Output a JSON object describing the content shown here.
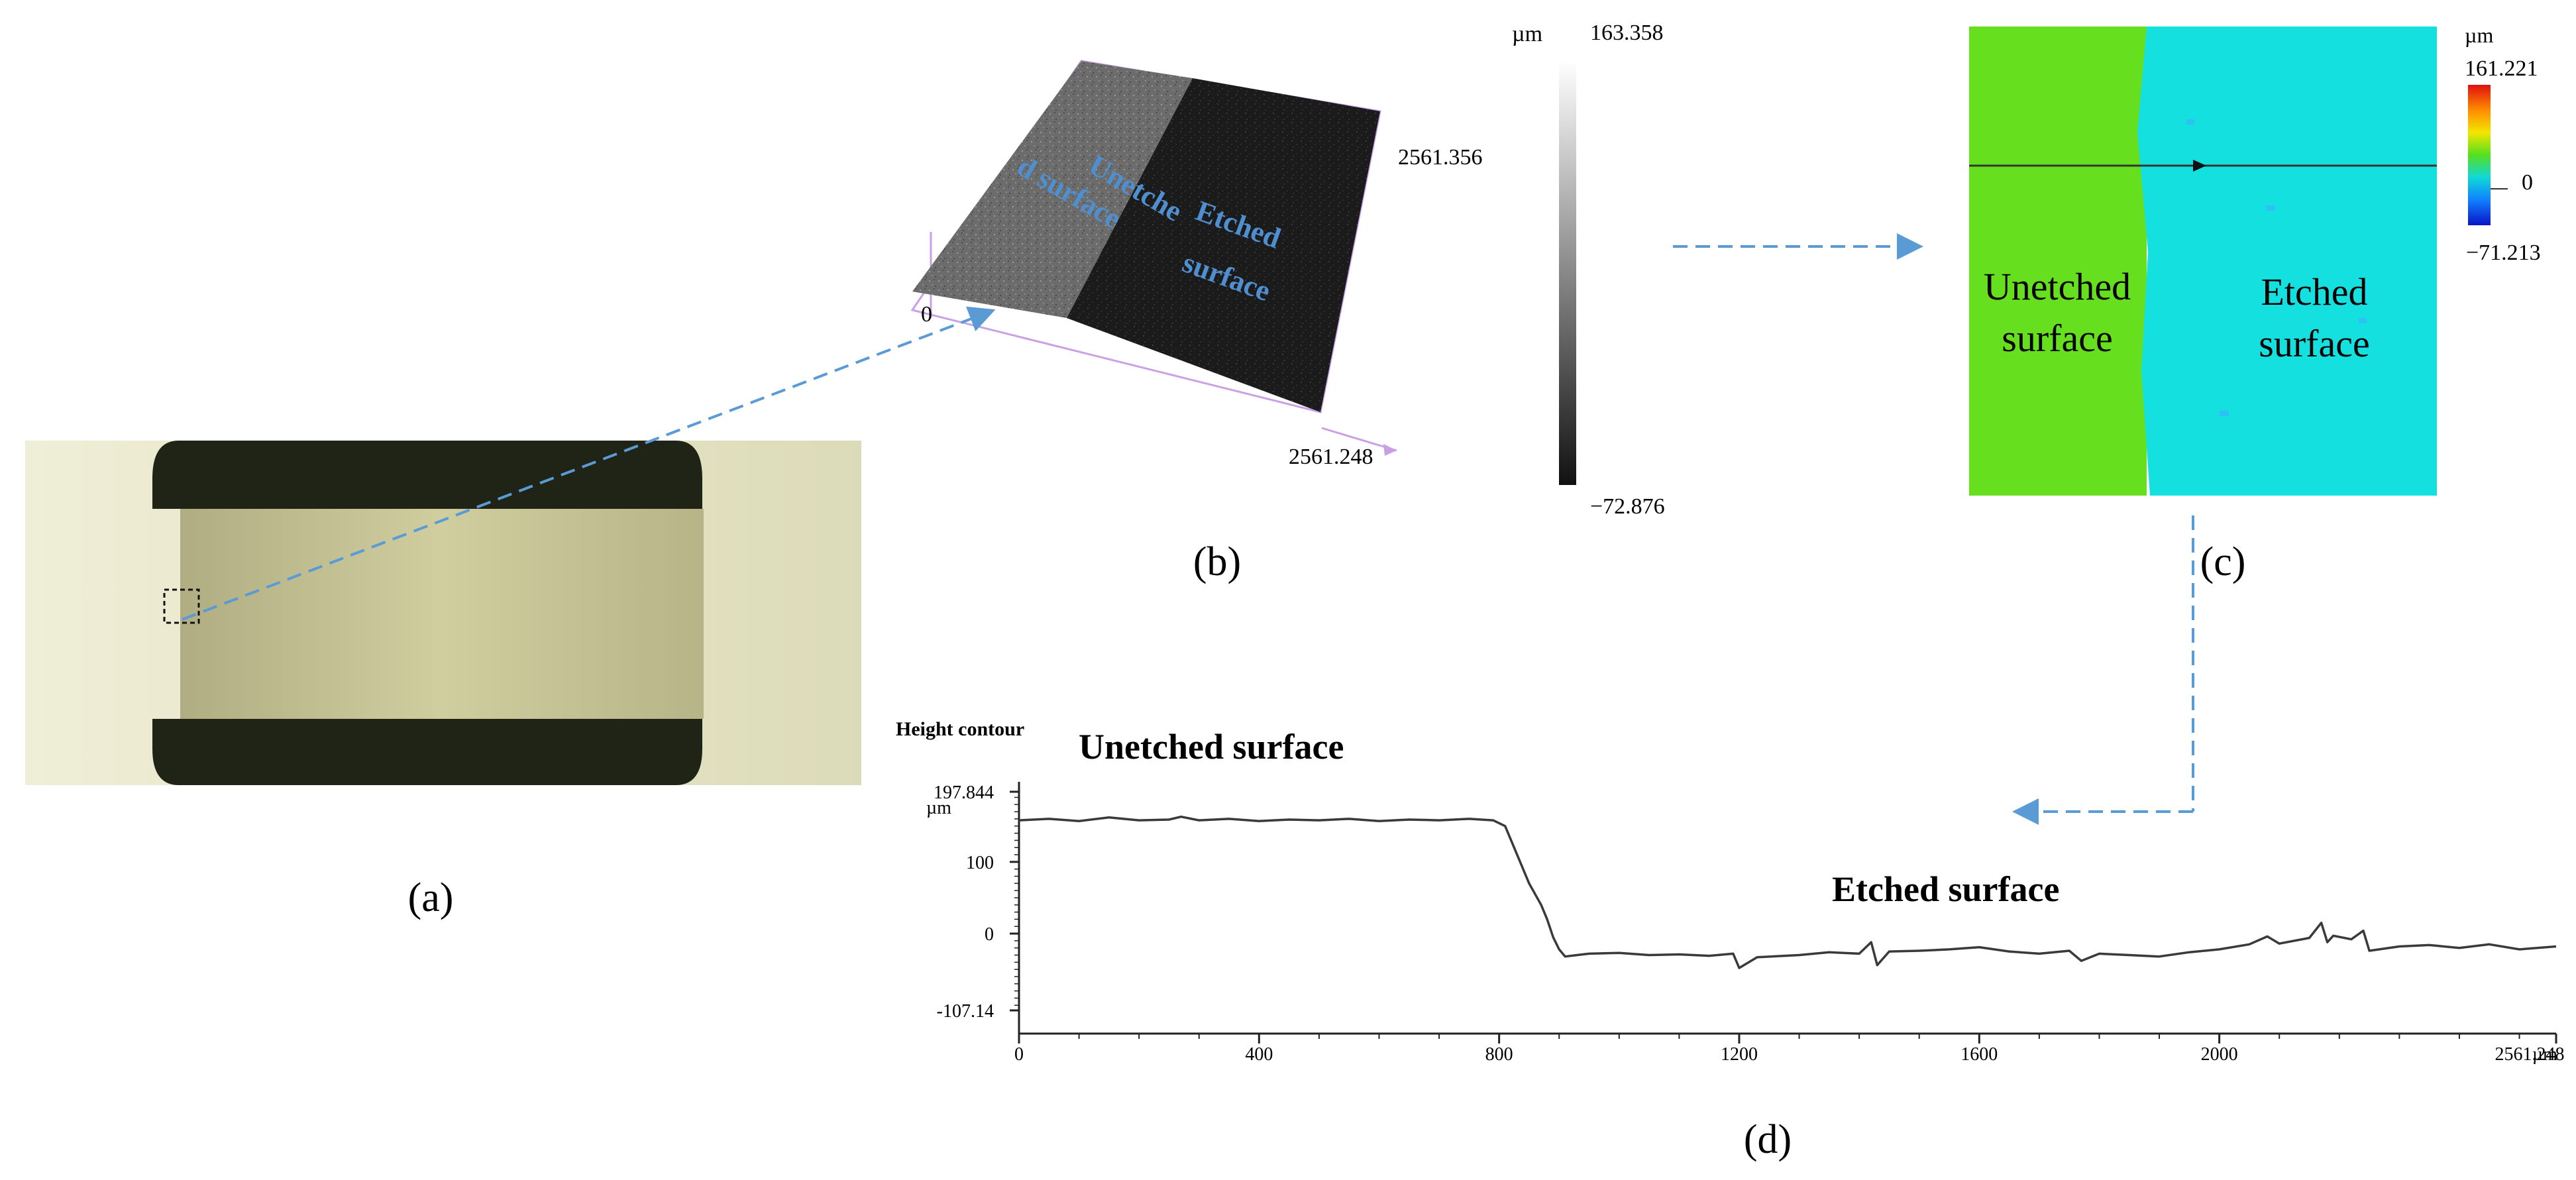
{
  "panels": {
    "a": {
      "label": "(a)"
    },
    "b": {
      "label": "(b)",
      "unetched_line1": "Unetche",
      "unetched_line2": "d surface",
      "etched_line1": "Etched",
      "etched_line2": "surface",
      "axis_zero": "0",
      "axis_y_max": "2561.356",
      "axis_x_max": "2561.248",
      "scale_unit": "µm",
      "scale_max": "163.358",
      "scale_min": "−72.876"
    },
    "c": {
      "label": "(c)",
      "unetched_line1": "Unetched",
      "unetched_line2": "surface",
      "etched_line1": "Etched",
      "etched_line2": "surface",
      "scale_unit": "µm",
      "scale_max": "161.221",
      "scale_zero": "0",
      "scale_min": "−71.213"
    },
    "d": {
      "label": "(d)",
      "title": "Height contour",
      "unetched_label": "Unetched surface",
      "etched_label": "Etched surface",
      "y_unit": "µm",
      "x_unit": "µm"
    }
  },
  "colors": {
    "arrow": "#5a9bd5",
    "label_blue": "#4f8fd0",
    "unetched_green": "#66e01e",
    "etched_cyan": "#14e0e0",
    "profile_line": "#3a3a3a",
    "box_outline": "#c9a0e6"
  },
  "chart_data": {
    "type": "line",
    "title": "Height contour",
    "xlabel": "µm",
    "ylabel": "µm",
    "xlim": [
      0,
      2561.248
    ],
    "ylim": [
      -107.14,
      197.844
    ],
    "x_ticks": [
      "0",
      "400",
      "800",
      "1200",
      "1600",
      "2000",
      "2561.248"
    ],
    "x_tick_values": [
      0,
      400,
      800,
      1200,
      1600,
      2000,
      2561.248
    ],
    "y_ticks": [
      "197.844",
      "100",
      "0",
      "-107.14"
    ],
    "y_tick_values": [
      197.844,
      100,
      0,
      -107.14
    ],
    "series": [
      {
        "x": [
          0,
          50,
          100,
          150,
          200,
          250,
          270,
          300,
          350,
          400,
          450,
          500,
          550,
          600,
          650,
          700,
          750,
          790,
          810,
          830,
          850,
          870,
          880,
          890,
          900,
          910,
          930,
          950,
          1000,
          1050,
          1100,
          1150,
          1190,
          1200,
          1230,
          1300,
          1350,
          1400,
          1420,
          1430,
          1450,
          1500,
          1550,
          1600,
          1650,
          1700,
          1750,
          1770,
          1800,
          1850,
          1900,
          1950,
          2000,
          2050,
          2080,
          2100,
          2150,
          2170,
          2180,
          2190,
          2220,
          2240,
          2250,
          2300,
          2350,
          2400,
          2450,
          2500,
          2561.248
        ],
        "values": [
          158,
          160,
          157,
          162,
          158,
          159,
          163,
          158,
          160,
          157,
          159,
          158,
          160,
          157,
          159,
          158,
          160,
          158,
          150,
          110,
          70,
          40,
          20,
          -5,
          -22,
          -32,
          -30,
          -28,
          -27,
          -30,
          -29,
          -31,
          -28,
          -48,
          -33,
          -30,
          -26,
          -28,
          -12,
          -44,
          -25,
          -24,
          -22,
          -19,
          -25,
          -28,
          -24,
          -38,
          -28,
          -30,
          -32,
          -26,
          -22,
          -15,
          -4,
          -14,
          -6,
          15,
          -12,
          -3,
          -8,
          4,
          -24,
          -18,
          -16,
          -20,
          -15,
          -22,
          -18
        ]
      }
    ]
  }
}
